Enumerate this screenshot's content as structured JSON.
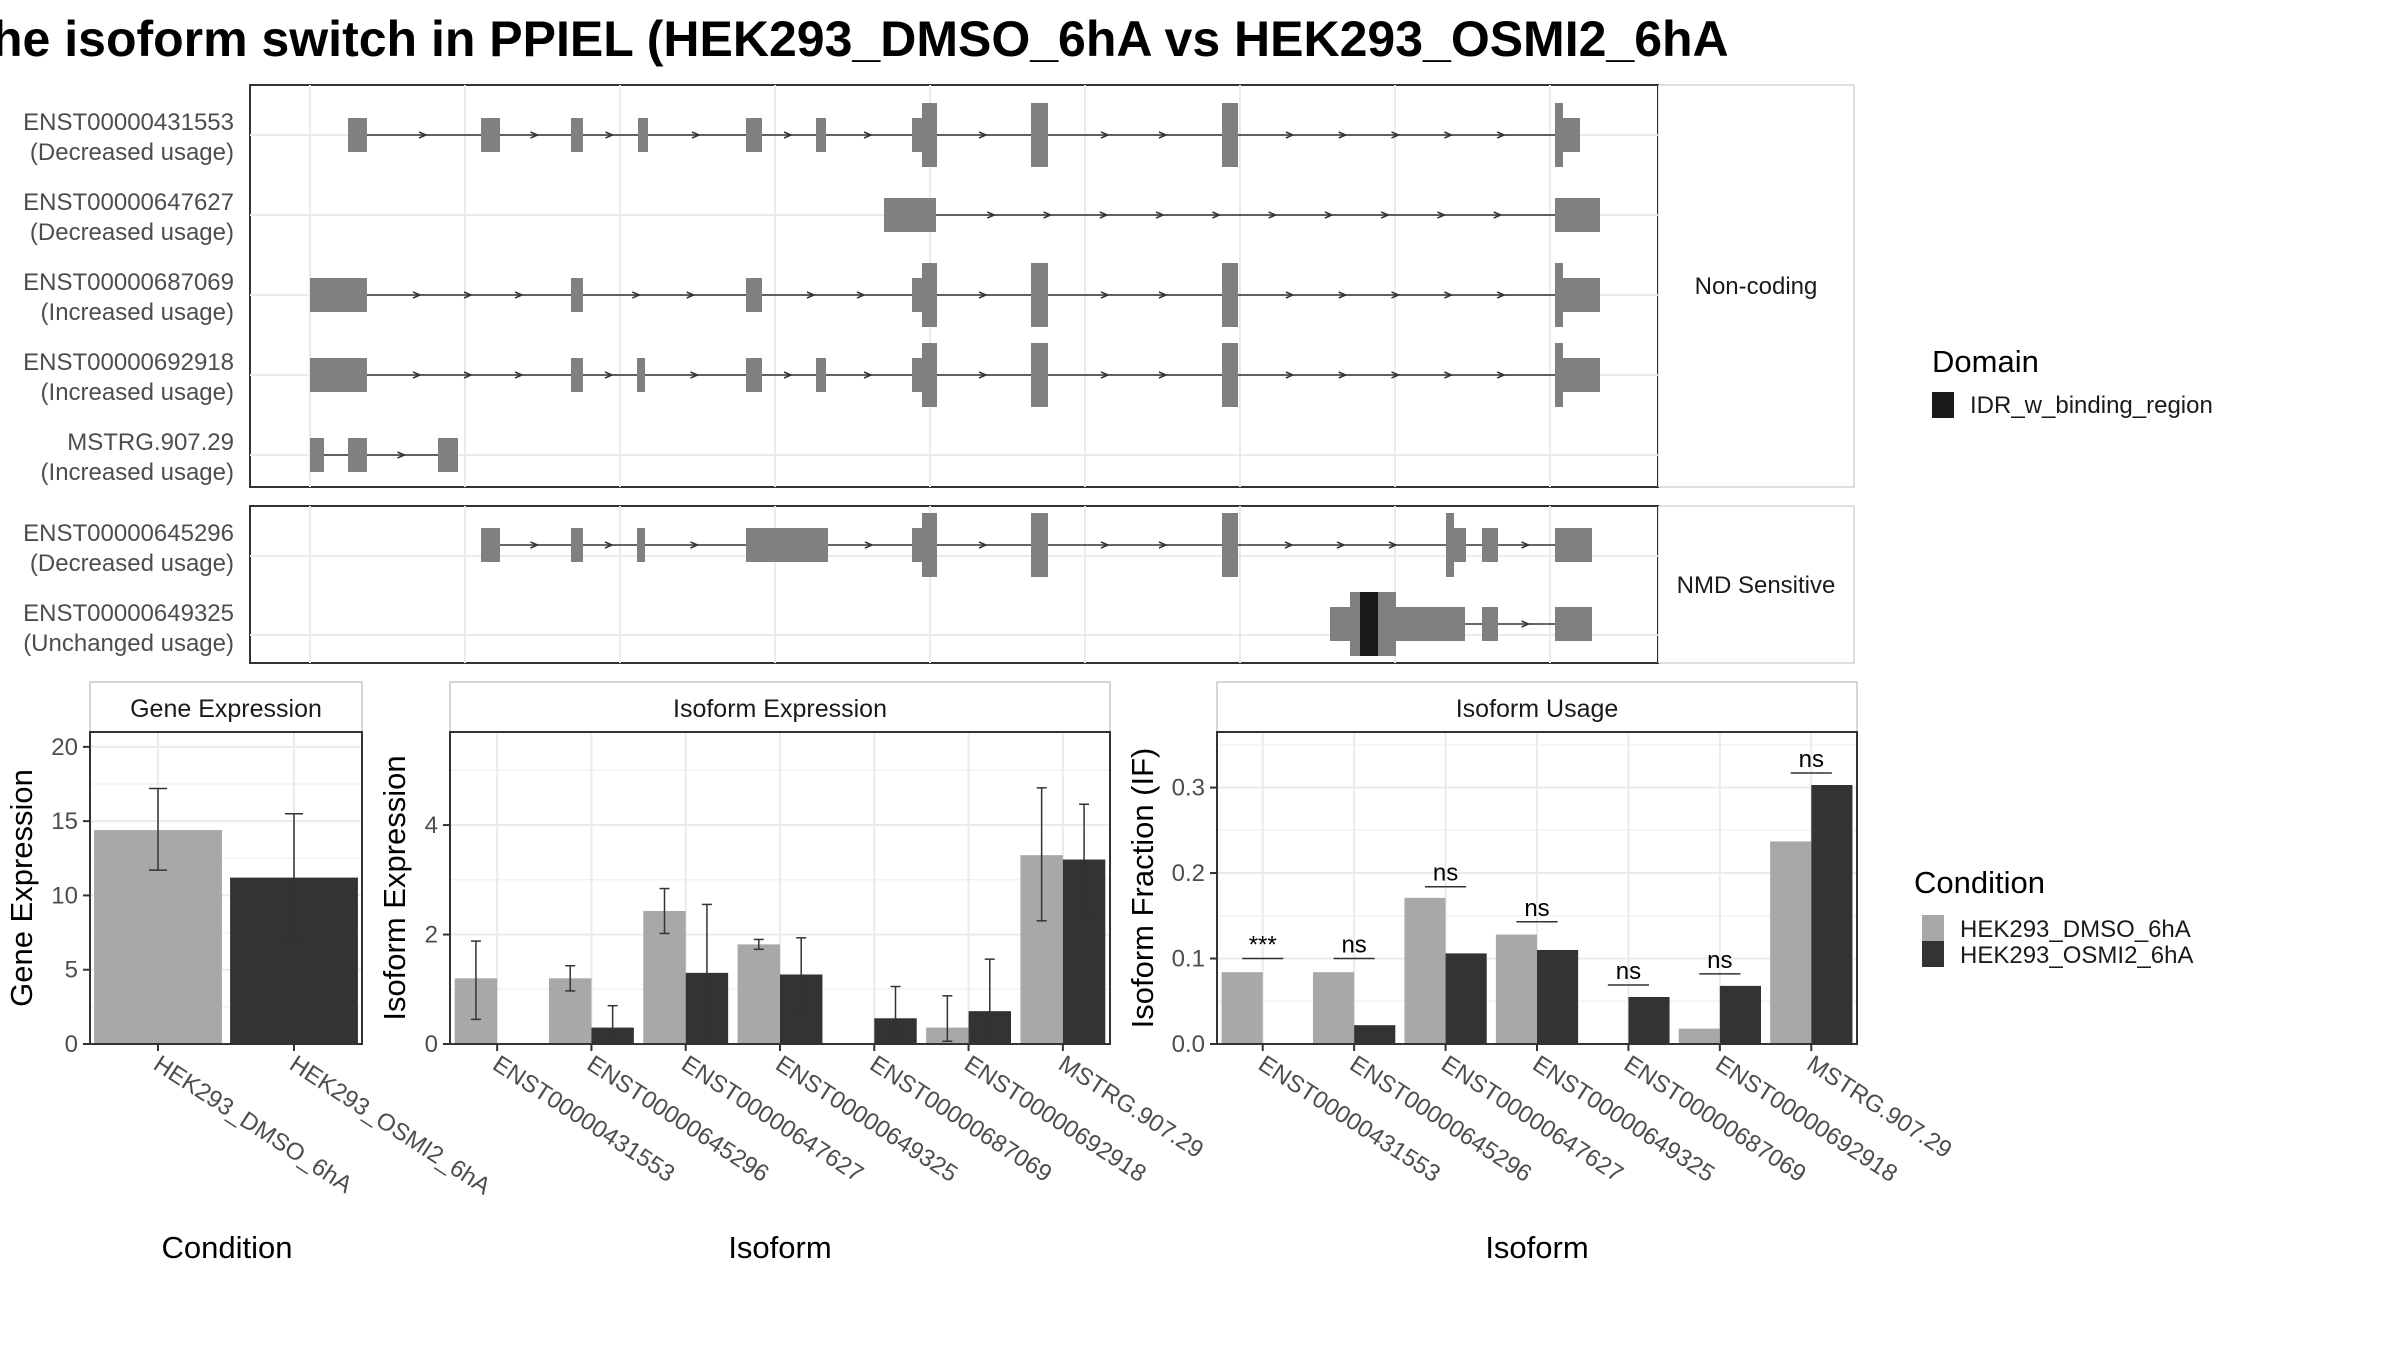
{
  "title": "he isoform switch in PPIEL (HEK293_DMSO_6hA vs HEK293_OSMI2_6hA",
  "colors": {
    "dmso": "#a8a8a8",
    "osmi2": "#333333",
    "exon": "#808080",
    "domain": "#1a1a1a",
    "strip": "#ffffff",
    "grid": "#ebebeb",
    "panel_border": "#333333"
  },
  "isoform_structure": {
    "panels": [
      {
        "label": "Non-coding",
        "transcripts": [
          {
            "id": "ENST00000431553",
            "usage": "(Decreased usage)"
          },
          {
            "id": "ENST00000647627",
            "usage": "(Decreased usage)"
          },
          {
            "id": "ENST00000687069",
            "usage": "(Increased usage)"
          },
          {
            "id": "ENST00000692918",
            "usage": "(Increased usage)"
          },
          {
            "id": "MSTRG.907.29",
            "usage": "(Increased usage)"
          }
        ]
      },
      {
        "label": "NMD Sensitive",
        "transcripts": [
          {
            "id": "ENST00000645296",
            "usage": "(Decreased usage)"
          },
          {
            "id": "ENST00000649325",
            "usage": "(Unchanged usage)"
          }
        ]
      }
    ],
    "domain_legend": {
      "title": "Domain",
      "entries": [
        "IDR_w_binding_region"
      ]
    }
  },
  "chart_data": [
    {
      "type": "bar",
      "title": "Gene Expression",
      "xlabel": "Condition",
      "ylabel": "Gene Expression",
      "categories": [
        "HEK293_DMSO_6hA",
        "HEK293_OSMI2_6hA"
      ],
      "ylim": [
        0,
        21
      ],
      "yticks": [
        "0",
        "5",
        "10",
        "15",
        "20"
      ],
      "values": [
        14.4,
        11.2
      ],
      "error_low": [
        11.7,
        7.0
      ],
      "error_high": [
        17.2,
        15.5
      ]
    },
    {
      "type": "bar",
      "title": "Isoform Expression",
      "xlabel": "Isoform",
      "ylabel": "Isoform Expression",
      "categories": [
        "ENST00000431553",
        "ENST00000645296",
        "ENST00000647627",
        "ENST00000649325",
        "ENST00000687069",
        "ENST00000692918",
        "MSTRG.907.29"
      ],
      "ylim": [
        0,
        5.7
      ],
      "yticks": [
        "0",
        "2",
        "4"
      ],
      "series": [
        {
          "name": "HEK293_DMSO_6hA",
          "values": [
            1.2,
            1.2,
            2.43,
            1.82,
            0.0,
            0.3,
            3.45
          ],
          "error_low": [
            0.45,
            0.97,
            2.02,
            1.73,
            0,
            0.05,
            2.25
          ],
          "error_high": [
            1.88,
            1.43,
            2.84,
            1.91,
            0,
            0.88,
            4.68
          ]
        },
        {
          "name": "HEK293_OSMI2_6hA",
          "values": [
            0.0,
            0.3,
            1.3,
            1.27,
            0.47,
            0.6,
            3.37
          ],
          "error_low": [
            0,
            0.0,
            0.05,
            0.6,
            0,
            0.0,
            2.36
          ],
          "error_high": [
            0,
            0.7,
            2.55,
            1.94,
            1.05,
            1.55,
            4.38
          ]
        }
      ]
    },
    {
      "type": "bar",
      "title": "Isoform Usage",
      "xlabel": "Isoform",
      "ylabel": "Isoform Fraction (IF)",
      "categories": [
        "ENST00000431553",
        "ENST00000645296",
        "ENST00000647627",
        "ENST00000649325",
        "ENST00000687069",
        "ENST00000692918",
        "MSTRG.907.29"
      ],
      "ylim": [
        0,
        0.365
      ],
      "yticks": [
        "0.0",
        "0.1",
        "0.2",
        "0.3"
      ],
      "series": [
        {
          "name": "HEK293_DMSO_6hA",
          "values": [
            0.084,
            0.084,
            0.171,
            0.128,
            0.0,
            0.018,
            0.237
          ]
        },
        {
          "name": "HEK293_OSMI2_6hA",
          "values": [
            0.0,
            0.022,
            0.106,
            0.11,
            0.055,
            0.068,
            0.303
          ]
        }
      ],
      "significance": [
        "***",
        "ns",
        "ns",
        "ns",
        "ns",
        "ns",
        "ns"
      ],
      "significance_y": [
        0.1,
        0.1,
        0.184,
        0.143,
        0.069,
        0.082,
        0.317
      ]
    }
  ],
  "condition_legend": {
    "title": "Condition",
    "entries": [
      "HEK293_DMSO_6hA",
      "HEK293_OSMI2_6hA"
    ]
  }
}
